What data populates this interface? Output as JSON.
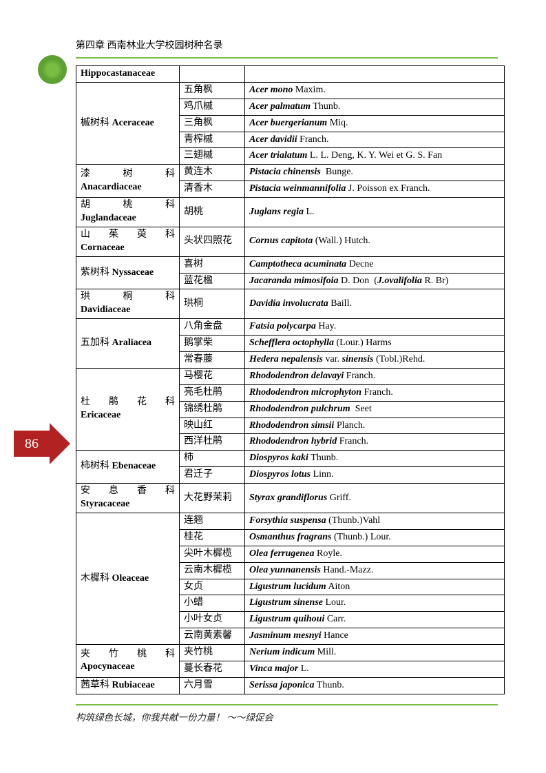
{
  "header": "第四章 西南林业大学校园树种名录",
  "page_number": "86",
  "footer": "构筑绿色长城，你我共献一份力量！   ～～绿促会",
  "colors": {
    "accent": "#7bbd42",
    "arrow": "#b22222",
    "text": "#000000",
    "background": "#ffffff"
  },
  "families": [
    {
      "name_cn": "",
      "name_en": "Hippocastanaceae",
      "species": [
        {
          "cn": "",
          "sci": ""
        }
      ]
    },
    {
      "name_cn": "槭树科",
      "name_en": "Aceraceae",
      "species": [
        {
          "cn": "五角枫",
          "sci": "<i>Acer mono</i> Maxim."
        },
        {
          "cn": "鸡爪槭",
          "sci": "<i>Acer palmatum</i> Thunb."
        },
        {
          "cn": "三角枫",
          "sci": "<i>Acer buergerianum</i> Miq."
        },
        {
          "cn": "青榨槭",
          "sci": "<i>Acer davidii</i> Franch."
        },
        {
          "cn": "三翅槭",
          "sci": "<i>Acer trialatum</i> L. L. Deng, K. Y. Wei et G. S. Fan"
        }
      ]
    },
    {
      "name_cn": "漆 树 科",
      "name_en": "Anacardiaceae",
      "justify": true,
      "species": [
        {
          "cn": "黄连木",
          "sci": "<i>Pistacia chinensis</i>&nbsp;&nbsp;Bunge."
        },
        {
          "cn": "清香木",
          "sci": "<i>Pistacia weinmannifolia</i> J. Poisson ex Franch."
        }
      ]
    },
    {
      "name_cn": "胡 桃 科",
      "name_en": "Juglandaceae",
      "justify": true,
      "species": [
        {
          "cn": "胡桃",
          "sci": "<i>Juglans regia</i> L."
        }
      ]
    },
    {
      "name_cn": "山 茱 萸 科",
      "name_en": "Cornaceae",
      "justify": true,
      "species": [
        {
          "cn": "头状四照花",
          "sci": "<i>Cornus capitota</i> (Wall.) Hutch."
        }
      ]
    },
    {
      "name_cn": "紫树科",
      "name_en": "Nyssaceae",
      "species": [
        {
          "cn": "喜树",
          "sci": "<i>Camptotheca acuminata</i> Decne"
        },
        {
          "cn": "蓝花楹",
          "sci": "<i>Jacaranda mimosifoia</i> D. Don&nbsp;&nbsp;(<i>J.ovalifolia</i> R. Br)"
        }
      ]
    },
    {
      "name_cn": "珙 桐 科",
      "name_en": "Davidiaceae",
      "justify": true,
      "species": [
        {
          "cn": "珙桐",
          "sci": "<i>Davidia involucrata</i> Baill."
        }
      ]
    },
    {
      "name_cn": "五加科",
      "name_en": "Araliacea",
      "species": [
        {
          "cn": "八角金盘",
          "sci": "<i>Fatsia polycarpa</i> Hay."
        },
        {
          "cn": "鹅掌柴",
          "sci": "<i>Schefflera octophylla</i> (Lour.) Harms"
        },
        {
          "cn": "常春藤",
          "sci": "<i>Hedera nepalensis</i> var. <i>sinensis</i> (Tobl.)Rehd."
        }
      ]
    },
    {
      "name_cn": "杜 鹃 花 科",
      "name_en": "Ericaceae",
      "justify": true,
      "species": [
        {
          "cn": "马樱花",
          "sci": "<i>Rhododendron delavayi</i> Franch."
        },
        {
          "cn": "亮毛杜鹃",
          "sci": "<i>Rhododendron microphyton</i> Franch."
        },
        {
          "cn": "锦绣杜鹃",
          "sci": "<i>Rhododendron pulchrum</i>&nbsp;&nbsp;Seet"
        },
        {
          "cn": "映山红",
          "sci": "<i>Rhododendron simsii</i> Planch."
        },
        {
          "cn": "西洋杜鹃",
          "sci": "<i>Rhododendron hybrid</i> Franch."
        }
      ]
    },
    {
      "name_cn": "柿树科",
      "name_en": "Ebenaceae",
      "species": [
        {
          "cn": "柿",
          "sci": "<i>Diospyros kaki</i> Thunb."
        },
        {
          "cn": "君迁子",
          "sci": "<i>Diospyros lotus</i> Linn."
        }
      ]
    },
    {
      "name_cn": "安 息 香 科",
      "name_en": "Styracaceae",
      "justify": true,
      "species": [
        {
          "cn": "大花野茉莉",
          "sci": "<i>Styrax grandiflorus</i> Griff."
        }
      ]
    },
    {
      "name_cn": "木樨科",
      "name_en": "Oleaceae",
      "species": [
        {
          "cn": "连翘",
          "sci": "<i>Forsythia suspensa</i> (Thunb.)Vahl"
        },
        {
          "cn": "桂花",
          "sci": "<i>Osmanthus fragrans</i> (Thunb.) Lour."
        },
        {
          "cn": "尖叶木樨榄",
          "sci": "<i>Olea ferrugenea</i> Royle."
        },
        {
          "cn": "云南木樨榄",
          "sci": "<i>Olea yunnanensis</i> Hand.-Mazz."
        },
        {
          "cn": "女贞",
          "sci": "<i>Ligustrum lucidum</i> Aiton"
        },
        {
          "cn": "小蜡",
          "sci": "<i>Ligustrum sinense</i> Lour."
        },
        {
          "cn": "小叶女贞",
          "sci": "<i>Ligustrum quihoui</i> Carr."
        },
        {
          "cn": "云南黄素馨",
          "sci": "<i>Jasminum mesnyi</i> Hance"
        }
      ]
    },
    {
      "name_cn": "夹 竹 桃 科",
      "name_en": "Apocynaceae",
      "justify": true,
      "species": [
        {
          "cn": "夹竹桃",
          "sci": "<i>Nerium indicum</i> Mill."
        },
        {
          "cn": "蔓长春花",
          "sci": "<i>Vinca major</i> L."
        }
      ]
    },
    {
      "name_cn": "茜草科",
      "name_en": "Rubiaceae",
      "species": [
        {
          "cn": "六月雪",
          "sci": "<i>Serissa japonica</i> Thunb."
        }
      ]
    }
  ]
}
